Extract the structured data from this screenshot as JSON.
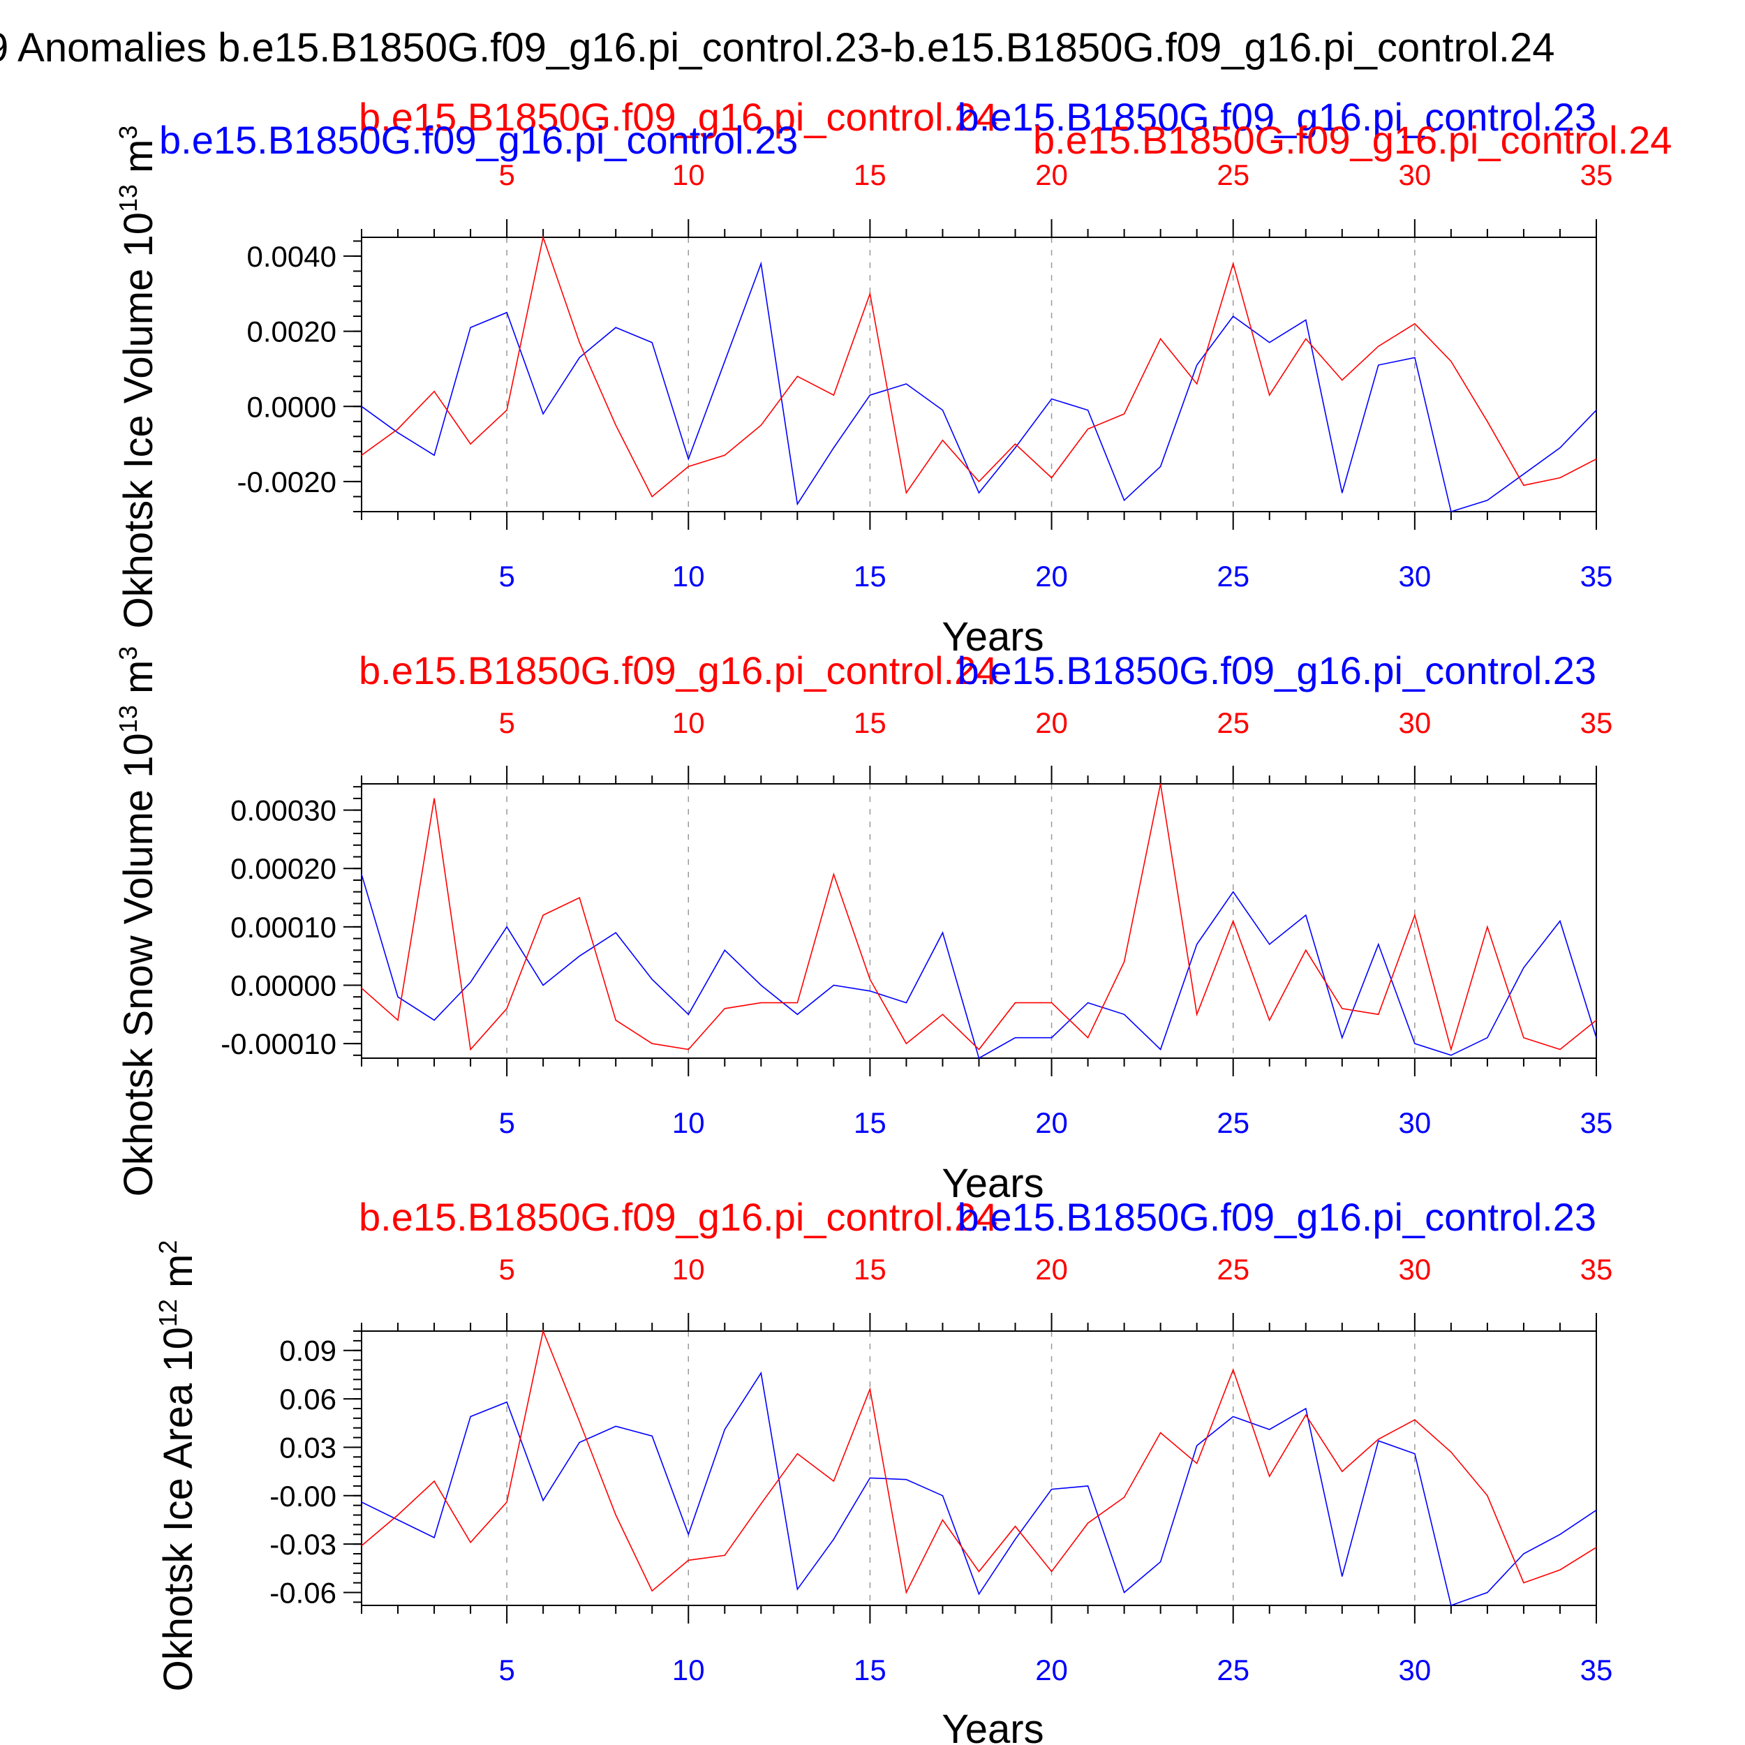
{
  "main_title": "9 Anomalies b.e15.B1850G.f09_g16.pi_control.23-b.e15.B1850G.f09_g16.pi_control.24",
  "colors": {
    "blue": "#0000ff",
    "red": "#ff0000",
    "axis": "#000000",
    "grid": "#999999"
  },
  "chart_data": [
    {
      "type": "line",
      "ylabel": "Okhotsk Ice Volume 10",
      "ylabel_exp": "13",
      "ylabel_unit": "m",
      "ylabel_unit_exp": "3",
      "xlabel": "Years",
      "top_label_red": "b.e15.B1850G.f09_g16.pi_control.24",
      "top_label_blue": "b.e15.B1850G.f09_g16.pi_control.23",
      "extra_label_blue": "b.e15.B1850G.f09_g16.pi_control.23",
      "extra_label_red": "b.e15.B1850G.f09_g16.pi_control.24",
      "xlim": [
        1,
        35
      ],
      "ylim": [
        -0.0028,
        0.0045
      ],
      "x_ticks": [
        "5",
        "10",
        "15",
        "20",
        "25",
        "30",
        "35"
      ],
      "y_ticks": [
        "0.0040",
        "0.0020",
        "0.0000",
        "-0.0020"
      ],
      "y_tick_values": [
        0.004,
        0.002,
        0.0,
        -0.002
      ],
      "y_minor_step": 0.0004,
      "x": [
        1,
        2,
        3,
        4,
        5,
        6,
        7,
        8,
        9,
        10,
        11,
        12,
        13,
        14,
        15,
        16,
        17,
        18,
        19,
        20,
        21,
        22,
        23,
        24,
        25,
        26,
        27,
        28,
        29,
        30,
        31,
        32,
        33,
        34,
        35
      ],
      "series": [
        {
          "name": "b.e15.B1850G.f09_g16.pi_control.23",
          "color": "blue",
          "values": [
            0.0,
            -0.0007,
            -0.0013,
            0.0021,
            0.0025,
            -0.0002,
            0.0013,
            0.0021,
            0.0017,
            -0.0014,
            0.0012,
            0.0038,
            -0.0026,
            -0.0011,
            0.0003,
            0.0006,
            -0.0001,
            -0.0023,
            -0.0011,
            0.0002,
            -0.0001,
            -0.0025,
            -0.0016,
            0.0011,
            0.0024,
            0.0017,
            0.0023,
            -0.0023,
            0.0011,
            0.0013,
            -0.0028,
            -0.0025,
            -0.0018,
            -0.0011,
            -0.0001
          ]
        },
        {
          "name": "b.e15.B1850G.f09_g16.pi_control.24",
          "color": "red",
          "values": [
            -0.0013,
            -0.0006,
            0.0004,
            -0.001,
            -0.0001,
            0.0045,
            0.0017,
            -0.0005,
            -0.0024,
            -0.0016,
            -0.0013,
            -0.0005,
            0.0008,
            0.0003,
            0.003,
            -0.0023,
            -0.0009,
            -0.002,
            -0.001,
            -0.0019,
            -0.0006,
            -0.0002,
            0.0018,
            0.0006,
            0.0038,
            0.0003,
            0.0018,
            0.0007,
            0.0016,
            0.0022,
            0.0012,
            -0.0004,
            -0.0021,
            -0.0019,
            -0.0014
          ]
        }
      ]
    },
    {
      "type": "line",
      "ylabel": "Okhotsk Snow Volume 10",
      "ylabel_exp": "13",
      "ylabel_unit": "m",
      "ylabel_unit_exp": "3",
      "xlabel": "Years",
      "top_label_red": "b.e15.B1850G.f09_g16.pi_control.24",
      "top_label_blue": "b.e15.B1850G.f09_g16.pi_control.23",
      "xlim": [
        1,
        35
      ],
      "ylim": [
        -0.000125,
        0.000345
      ],
      "x_ticks": [
        "5",
        "10",
        "15",
        "20",
        "25",
        "30",
        "35"
      ],
      "y_ticks": [
        "0.00030",
        "0.00020",
        "0.00010",
        "0.00000",
        "-0.00010"
      ],
      "y_tick_values": [
        0.0003,
        0.0002,
        0.0001,
        0.0,
        -0.0001
      ],
      "y_minor_step": 2e-05,
      "x": [
        1,
        2,
        3,
        4,
        5,
        6,
        7,
        8,
        9,
        10,
        11,
        12,
        13,
        14,
        15,
        16,
        17,
        18,
        19,
        20,
        21,
        22,
        23,
        24,
        25,
        26,
        27,
        28,
        29,
        30,
        31,
        32,
        33,
        34,
        35
      ],
      "series": [
        {
          "name": "b.e15.B1850G.f09_g16.pi_control.23",
          "color": "blue",
          "values": [
            0.00019,
            -2e-05,
            -6e-05,
            5e-06,
            0.0001,
            0.0,
            5e-05,
            9e-05,
            1e-05,
            -5e-05,
            6e-05,
            0.0,
            -5e-05,
            0.0,
            -1e-05,
            -3e-05,
            9e-05,
            -0.000125,
            -9e-05,
            -9e-05,
            -3e-05,
            -5e-05,
            -0.00011,
            7e-05,
            0.00016,
            7e-05,
            0.00012,
            -9e-05,
            7e-05,
            -0.0001,
            -0.00012,
            -9e-05,
            3e-05,
            0.00011,
            -9e-05
          ]
        },
        {
          "name": "b.e15.B1850G.f09_g16.pi_control.24",
          "color": "red",
          "values": [
            -5e-06,
            -6e-05,
            0.00032,
            -0.00011,
            -4e-05,
            0.00012,
            0.00015,
            -6e-05,
            -0.0001,
            -0.00011,
            -4e-05,
            -3e-05,
            -3e-05,
            0.00019,
            1e-05,
            -0.0001,
            -5e-05,
            -0.00011,
            -3e-05,
            -3e-05,
            -9e-05,
            4e-05,
            0.000345,
            -5e-05,
            0.00011,
            -6e-05,
            6e-05,
            -4e-05,
            -5e-05,
            0.00012,
            -0.00011,
            0.0001,
            -9e-05,
            -0.00011,
            -6e-05
          ]
        }
      ]
    },
    {
      "type": "line",
      "ylabel": "Okhotsk Ice Area 10",
      "ylabel_exp": "12",
      "ylabel_unit": "m",
      "ylabel_unit_exp": "2",
      "xlabel": "Years",
      "top_label_red": "b.e15.B1850G.f09_g16.pi_control.24",
      "top_label_blue": "b.e15.B1850G.f09_g16.pi_control.23",
      "xlim": [
        1,
        35
      ],
      "ylim": [
        -0.068,
        0.102
      ],
      "x_ticks": [
        "5",
        "10",
        "15",
        "20",
        "25",
        "30",
        "35"
      ],
      "y_ticks": [
        "0.09",
        "0.06",
        "0.03",
        "-0.00",
        "-0.03",
        "-0.06"
      ],
      "y_tick_values": [
        0.09,
        0.06,
        0.03,
        0.0,
        -0.03,
        -0.06
      ],
      "y_minor_step": 0.006,
      "x": [
        1,
        2,
        3,
        4,
        5,
        6,
        7,
        8,
        9,
        10,
        11,
        12,
        13,
        14,
        15,
        16,
        17,
        18,
        19,
        20,
        21,
        22,
        23,
        24,
        25,
        26,
        27,
        28,
        29,
        30,
        31,
        32,
        33,
        34,
        35
      ],
      "series": [
        {
          "name": "b.e15.B1850G.f09_g16.pi_control.23",
          "color": "blue",
          "values": [
            -0.004,
            -0.015,
            -0.026,
            0.049,
            0.058,
            -0.003,
            0.033,
            0.043,
            0.037,
            -0.024,
            0.041,
            0.076,
            -0.058,
            -0.027,
            0.011,
            0.01,
            0.0,
            -0.061,
            -0.027,
            0.004,
            0.006,
            -0.06,
            -0.041,
            0.031,
            0.049,
            0.041,
            0.054,
            -0.05,
            0.034,
            0.026,
            -0.068,
            -0.06,
            -0.036,
            -0.024,
            -0.009
          ]
        },
        {
          "name": "b.e15.B1850G.f09_g16.pi_control.24",
          "color": "red",
          "values": [
            -0.031,
            -0.012,
            0.009,
            -0.029,
            -0.004,
            0.102,
            0.046,
            -0.012,
            -0.059,
            -0.04,
            -0.037,
            -0.005,
            0.026,
            0.009,
            0.066,
            -0.06,
            -0.015,
            -0.047,
            -0.019,
            -0.047,
            -0.017,
            -0.001,
            0.039,
            0.02,
            0.078,
            0.012,
            0.05,
            0.015,
            0.035,
            0.047,
            0.027,
            0.0,
            -0.054,
            -0.046,
            -0.032
          ]
        }
      ]
    }
  ]
}
